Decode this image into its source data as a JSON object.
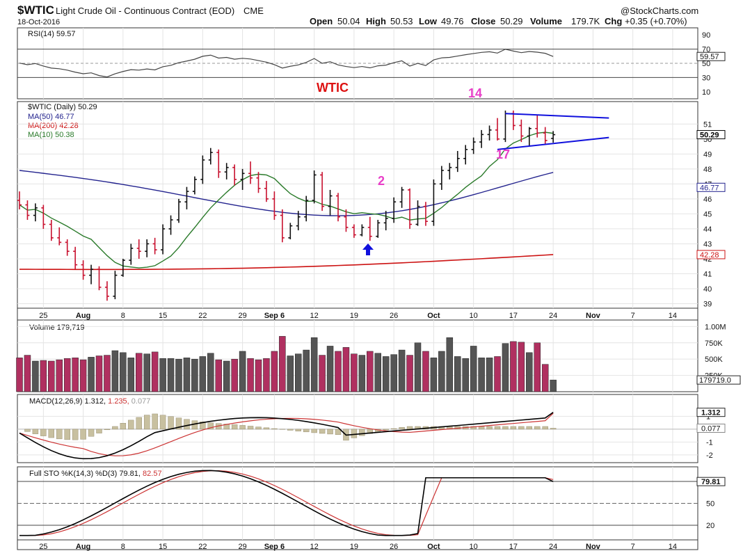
{
  "header": {
    "symbol": "$WTIC",
    "name": "Light Crude Oil - Continuous Contract (EOD)",
    "exchange": "CME",
    "date": "18-Oct-2016",
    "watermark": "@StockCharts.com",
    "open_label": "Open",
    "open": "50.04",
    "high_label": "High",
    "high": "50.53",
    "low_label": "Low",
    "low": "49.76",
    "close_label": "Close",
    "close": "50.29",
    "volume_label": "Volume",
    "volume": "179.7K",
    "chg_label": "Chg",
    "chg": "+0.35 (+0.70%)"
  },
  "annotations": {
    "title": "WTIC",
    "wave_14": "14",
    "wave_17": "17",
    "wave_2": "2"
  },
  "legends": {
    "rsi": "RSI(14) 59.57",
    "price": "$WTIC (Daily) 50.29",
    "ma50": "MA(50) 46.77",
    "ma200": "MA(200) 42.28",
    "ma10": "MA(10) 50.38",
    "volume": "Volume 179,719",
    "macd_a": "MACD(12,26,9)",
    "macd_b": "1.312,",
    "macd_c": "1.235,",
    "macd_d": "0.077",
    "sto_a": "Full STO %K(14,3) %D(3)",
    "sto_b": "79.81,",
    "sto_c": "82.57"
  },
  "badges": {
    "rsi": "59.57",
    "close": "50.29",
    "ma50": "46.77",
    "ma200": "42.28",
    "volume": "179719.0",
    "macd": "1.312",
    "macd_hist": "0.077",
    "sto": "79.81"
  },
  "colors": {
    "up": "#111111",
    "down": "#c8102e",
    "ma50": "#23238e",
    "ma200": "#cc1111",
    "ma10": "#2a7a2a",
    "vol_up": "#555555",
    "vol_down": "#b03060",
    "hist": "#c8c0a0",
    "signal": "#cc3333",
    "trend": "#1010dd",
    "wave_label": "#e83fc8",
    "arrow": "#1010dd",
    "annotation": "#dd1111"
  },
  "chart_data": [
    {
      "type": "line",
      "name": "RSI(14)",
      "yticks": [
        10,
        30,
        50,
        70,
        90
      ],
      "ylim": [
        0,
        100
      ],
      "last_value": 59.57
    },
    {
      "type": "candlestick",
      "series": "$WTIC (Daily)",
      "ylim": [
        38.7,
        52.5
      ],
      "yticks": [
        39,
        40,
        41,
        42,
        43,
        44,
        45,
        46,
        47,
        48,
        49,
        50,
        51
      ],
      "xlabels": [
        {
          "i": 3,
          "label": "25"
        },
        {
          "i": 8,
          "label": "Aug"
        },
        {
          "i": 13,
          "label": "8"
        },
        {
          "i": 18,
          "label": "15"
        },
        {
          "i": 23,
          "label": "22"
        },
        {
          "i": 28,
          "label": "29"
        },
        {
          "i": 32,
          "label": "Sep 6"
        },
        {
          "i": 37,
          "label": "12"
        },
        {
          "i": 42,
          "label": "19"
        },
        {
          "i": 47,
          "label": "26"
        },
        {
          "i": 52,
          "label": "Oct"
        },
        {
          "i": 57,
          "label": "10"
        },
        {
          "i": 62,
          "label": "17"
        },
        {
          "i": 67,
          "label": "24"
        },
        {
          "i": 72,
          "label": "Nov"
        },
        {
          "i": 77,
          "label": "7"
        },
        {
          "i": 82,
          "label": "14"
        }
      ],
      "ohlc": [
        [
          45.9,
          46.5,
          45.3,
          45.6
        ],
        [
          45.6,
          45.9,
          44.6,
          44.9
        ],
        [
          44.9,
          45.7,
          44.5,
          45.4
        ],
        [
          45.4,
          45.6,
          44.0,
          44.3
        ],
        [
          44.3,
          44.6,
          43.2,
          43.4
        ],
        [
          43.4,
          44.1,
          42.9,
          43.1
        ],
        [
          43.1,
          43.3,
          42.2,
          42.5
        ],
        [
          42.5,
          42.8,
          41.3,
          41.6
        ],
        [
          41.6,
          41.9,
          40.6,
          40.9
        ],
        [
          40.9,
          41.6,
          40.3,
          41.3
        ],
        [
          41.3,
          41.5,
          39.9,
          40.1
        ],
        [
          40.1,
          40.5,
          39.2,
          39.5
        ],
        [
          39.5,
          41.2,
          39.3,
          40.9
        ],
        [
          40.9,
          42.0,
          40.8,
          41.9
        ],
        [
          41.9,
          43.0,
          41.6,
          42.7
        ],
        [
          42.7,
          43.3,
          42.0,
          42.5
        ],
        [
          42.5,
          43.3,
          42.1,
          43.0
        ],
        [
          43.0,
          43.4,
          42.3,
          42.6
        ],
        [
          42.6,
          44.3,
          42.3,
          44.0
        ],
        [
          44.0,
          44.9,
          43.6,
          44.6
        ],
        [
          44.6,
          46.0,
          44.4,
          45.8
        ],
        [
          45.8,
          46.8,
          45.3,
          46.5
        ],
        [
          46.5,
          47.5,
          46.3,
          47.3
        ],
        [
          47.3,
          48.9,
          47.0,
          48.6
        ],
        [
          48.6,
          49.4,
          48.3,
          49.1
        ],
        [
          49.1,
          49.3,
          47.4,
          47.8
        ],
        [
          47.8,
          48.4,
          47.3,
          48.1
        ],
        [
          48.1,
          48.3,
          46.9,
          47.3
        ],
        [
          47.3,
          48.0,
          46.6,
          47.7
        ],
        [
          47.7,
          48.5,
          47.0,
          47.4
        ],
        [
          47.4,
          47.8,
          46.4,
          46.7
        ],
        [
          46.7,
          47.2,
          45.8,
          46.0
        ],
        [
          46.0,
          46.5,
          44.6,
          44.9
        ],
        [
          44.9,
          45.3,
          43.1,
          43.4
        ],
        [
          43.4,
          44.4,
          43.3,
          44.2
        ],
        [
          44.2,
          45.2,
          43.9,
          44.8
        ],
        [
          44.8,
          46.2,
          44.5,
          45.9
        ],
        [
          45.9,
          47.9,
          45.7,
          47.6
        ],
        [
          47.6,
          47.8,
          45.2,
          45.5
        ],
        [
          45.5,
          46.6,
          44.9,
          46.2
        ],
        [
          46.2,
          46.4,
          44.5,
          44.8
        ],
        [
          44.8,
          45.3,
          43.8,
          44.1
        ],
        [
          44.1,
          44.3,
          43.4,
          43.6
        ],
        [
          43.6,
          44.3,
          43.5,
          44.1
        ],
        [
          44.1,
          44.8,
          43.2,
          43.5
        ],
        [
          43.5,
          44.6,
          43.4,
          44.4
        ],
        [
          44.4,
          45.2,
          43.9,
          44.7
        ],
        [
          44.7,
          46.1,
          44.4,
          45.8
        ],
        [
          45.8,
          46.8,
          45.4,
          46.6
        ],
        [
          46.6,
          46.7,
          44.0,
          44.3
        ],
        [
          44.3,
          45.9,
          44.2,
          45.5
        ],
        [
          45.5,
          45.8,
          44.2,
          44.5
        ],
        [
          44.5,
          47.3,
          44.2,
          47.0
        ],
        [
          47.0,
          48.2,
          46.6,
          47.9
        ],
        [
          47.9,
          48.4,
          47.3,
          48.1
        ],
        [
          48.1,
          49.2,
          47.8,
          48.7
        ],
        [
          48.7,
          49.6,
          48.3,
          49.3
        ],
        [
          49.3,
          50.1,
          49.0,
          49.8
        ],
        [
          49.8,
          50.6,
          49.4,
          50.3
        ],
        [
          50.3,
          50.9,
          49.9,
          50.6
        ],
        [
          50.6,
          51.4,
          49.9,
          50.0
        ],
        [
          50.0,
          51.9,
          49.8,
          51.7
        ],
        [
          51.7,
          51.9,
          50.6,
          50.9
        ],
        [
          50.9,
          51.3,
          49.8,
          50.2
        ],
        [
          50.2,
          50.8,
          49.5,
          50.7
        ],
        [
          50.7,
          51.6,
          50.1,
          50.4
        ],
        [
          50.4,
          50.8,
          49.6,
          49.9
        ],
        [
          50.04,
          50.53,
          49.76,
          50.29
        ]
      ],
      "ma50_endpoints": [
        [
          0,
          47.9
        ],
        [
          67,
          46.77
        ]
      ],
      "ma200_endpoints": [
        [
          0,
          41.3
        ],
        [
          67,
          42.28
        ]
      ],
      "ma10_last": 50.38,
      "annotations": [
        "WTIC",
        "2",
        "14",
        "17"
      ],
      "trendline_upper": [
        [
          61,
          51.7
        ],
        [
          74,
          51.4
        ]
      ],
      "trendline_lower": [
        [
          60,
          49.3
        ],
        [
          74,
          50.1
        ]
      ]
    },
    {
      "type": "bar",
      "name": "Volume",
      "yticks_labels": [
        "250K",
        "500K",
        "750K",
        "1.00M"
      ],
      "yticks": [
        250,
        500,
        750,
        1000
      ],
      "ylim": [
        0,
        1100
      ],
      "unit": "thousands",
      "values": [
        520,
        560,
        470,
        480,
        470,
        490,
        510,
        520,
        490,
        530,
        550,
        560,
        630,
        600,
        520,
        590,
        580,
        610,
        510,
        510,
        500,
        520,
        500,
        540,
        590,
        490,
        470,
        500,
        620,
        510,
        490,
        510,
        620,
        850,
        550,
        580,
        640,
        830,
        560,
        700,
        620,
        680,
        580,
        560,
        620,
        590,
        540,
        570,
        640,
        560,
        750,
        620,
        520,
        620,
        830,
        540,
        510,
        700,
        520,
        520,
        540,
        740,
        770,
        760,
        600,
        750,
        420,
        180
      ],
      "last_value": 179719
    },
    {
      "type": "line",
      "name": "MACD(12,26,9)",
      "ylim": [
        -2.6,
        2.7
      ],
      "yticks": [
        -2,
        -1,
        0,
        1
      ],
      "series": [
        {
          "name": "MACD",
          "last": 1.312
        },
        {
          "name": "Signal",
          "last": 1.235
        },
        {
          "name": "Histogram",
          "last": 0.077
        }
      ]
    },
    {
      "type": "line",
      "name": "Full STO %K(14,3) %D(3)",
      "ylim": [
        0,
        100
      ],
      "yticks": [
        20,
        50,
        80
      ],
      "series": [
        {
          "name": "%K",
          "last": 79.81
        },
        {
          "name": "%D",
          "last": 82.57
        }
      ]
    }
  ]
}
